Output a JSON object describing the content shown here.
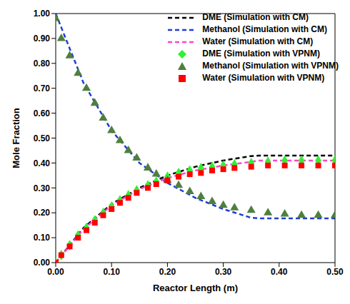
{
  "chart_data": {
    "type": "line",
    "x_label": "Reactor Length (m)",
    "y_label": "Mole Fraction",
    "xlim": [
      0,
      0.5
    ],
    "ylim": [
      0,
      1
    ],
    "xticks": [
      {
        "value": 0,
        "label": "0.00"
      },
      {
        "value": 0.1,
        "label": "0.10"
      },
      {
        "value": 0.2,
        "label": "0.20"
      },
      {
        "value": 0.3,
        "label": "0.30"
      },
      {
        "value": 0.4,
        "label": "0.40"
      },
      {
        "value": 0.5,
        "label": "0.50"
      }
    ],
    "yticks": [
      {
        "value": 0,
        "label": "0.00"
      },
      {
        "value": 0.1,
        "label": "0.10"
      },
      {
        "value": 0.2,
        "label": "0.20"
      },
      {
        "value": 0.3,
        "label": "0.30"
      },
      {
        "value": 0.4,
        "label": "0.40"
      },
      {
        "value": 0.5,
        "label": "0.50"
      },
      {
        "value": 0.6,
        "label": "0.60"
      },
      {
        "value": 0.7,
        "label": "0.70"
      },
      {
        "value": 0.8,
        "label": "0.80"
      },
      {
        "value": 0.9,
        "label": "0.90"
      },
      {
        "value": 1,
        "label": "1.00"
      }
    ],
    "grid": false,
    "legend": "upper right",
    "series": [
      {
        "name": "DME (Simulation with CM)",
        "type": "line",
        "line_style": "dashed",
        "color": "#000000",
        "x": [
          0,
          0.05,
          0.1,
          0.15,
          0.2,
          0.25,
          0.3,
          0.35,
          0.365,
          0.4,
          0.45,
          0.5
        ],
        "values": [
          0,
          0.14,
          0.235,
          0.3,
          0.35,
          0.385,
          0.41,
          0.428,
          0.43,
          0.43,
          0.43,
          0.43
        ]
      },
      {
        "name": "Methanol (Simulation with CM)",
        "type": "line",
        "line_style": "dashed",
        "color": "#1f3fd0",
        "x": [
          0,
          0.05,
          0.1,
          0.15,
          0.2,
          0.25,
          0.3,
          0.35,
          0.365,
          0.4,
          0.45,
          0.5
        ],
        "values": [
          1,
          0.72,
          0.53,
          0.4,
          0.32,
          0.26,
          0.215,
          0.18,
          0.178,
          0.178,
          0.178,
          0.178
        ]
      },
      {
        "name": "Water (Simulation with CM)",
        "type": "line",
        "line_style": "dashed",
        "color": "#ff44cc",
        "x": [
          0,
          0.05,
          0.1,
          0.15,
          0.2,
          0.25,
          0.3,
          0.35,
          0.365,
          0.4,
          0.45,
          0.5
        ],
        "values": [
          0,
          0.135,
          0.23,
          0.295,
          0.34,
          0.37,
          0.39,
          0.405,
          0.41,
          0.41,
          0.41,
          0.41
        ]
      },
      {
        "name": "DME (Simulation with VPNM)",
        "type": "scatter",
        "marker": "diamond",
        "color": "#33ee33",
        "x": [
          0,
          0.01,
          0.025,
          0.04,
          0.055,
          0.07,
          0.085,
          0.1,
          0.115,
          0.13,
          0.145,
          0.165,
          0.18,
          0.2,
          0.22,
          0.24,
          0.26,
          0.28,
          0.3,
          0.32,
          0.35,
          0.38,
          0.41,
          0.44,
          0.47,
          0.5
        ],
        "values": [
          0,
          0.03,
          0.07,
          0.11,
          0.14,
          0.17,
          0.2,
          0.225,
          0.25,
          0.27,
          0.29,
          0.31,
          0.325,
          0.345,
          0.36,
          0.37,
          0.38,
          0.385,
          0.39,
          0.395,
          0.4,
          0.405,
          0.41,
          0.41,
          0.41,
          0.41
        ]
      },
      {
        "name": "Methanol (Simulation with VPNM)",
        "type": "scatter",
        "marker": "triangle",
        "color": "#4f7f3f",
        "x": [
          0,
          0.01,
          0.025,
          0.04,
          0.055,
          0.07,
          0.085,
          0.1,
          0.115,
          0.13,
          0.145,
          0.165,
          0.18,
          0.2,
          0.22,
          0.24,
          0.26,
          0.28,
          0.3,
          0.32,
          0.35,
          0.38,
          0.41,
          0.44,
          0.47,
          0.5
        ],
        "values": [
          0.98,
          0.9,
          0.83,
          0.76,
          0.7,
          0.64,
          0.58,
          0.53,
          0.49,
          0.45,
          0.42,
          0.38,
          0.355,
          0.33,
          0.31,
          0.285,
          0.265,
          0.245,
          0.23,
          0.22,
          0.21,
          0.2,
          0.195,
          0.19,
          0.19,
          0.19
        ]
      },
      {
        "name": "Water (Simulation with VPNM)",
        "type": "scatter",
        "marker": "square",
        "color": "#ff0000",
        "x": [
          0,
          0.01,
          0.025,
          0.04,
          0.055,
          0.07,
          0.085,
          0.1,
          0.115,
          0.13,
          0.145,
          0.165,
          0.18,
          0.2,
          0.22,
          0.24,
          0.26,
          0.28,
          0.3,
          0.32,
          0.35,
          0.38,
          0.41,
          0.44,
          0.47,
          0.5
        ],
        "values": [
          0,
          0.03,
          0.065,
          0.1,
          0.13,
          0.16,
          0.19,
          0.215,
          0.24,
          0.26,
          0.28,
          0.3,
          0.315,
          0.33,
          0.345,
          0.355,
          0.36,
          0.37,
          0.375,
          0.38,
          0.385,
          0.39,
          0.39,
          0.39,
          0.39,
          0.39
        ]
      }
    ]
  }
}
